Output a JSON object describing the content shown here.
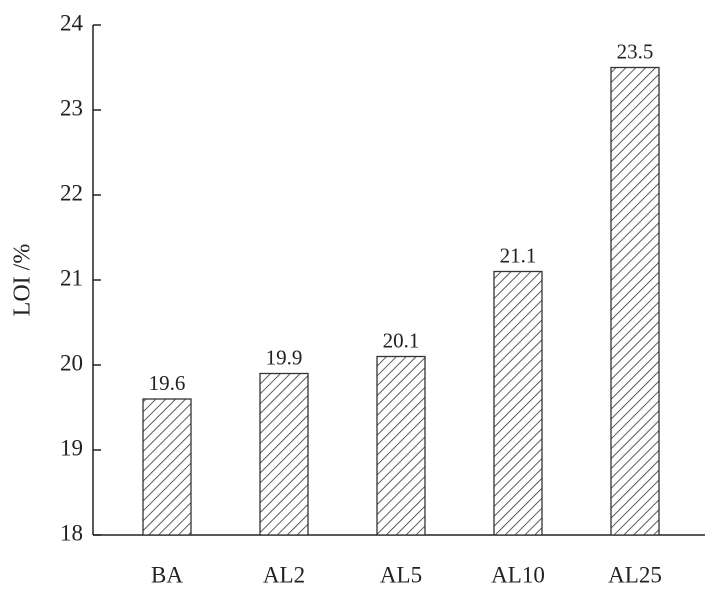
{
  "chart_data": {
    "type": "bar",
    "y_label": "LOI /%",
    "categories": [
      "BA",
      "AL2",
      "AL5",
      "AL10",
      "AL25"
    ],
    "values": [
      19.6,
      19.9,
      20.1,
      21.1,
      23.5
    ],
    "value_labels": [
      "19.6",
      "19.9",
      "20.1",
      "21.1",
      "23.5"
    ],
    "color": "#333333",
    "ylim": [
      18,
      24
    ],
    "yticks": [
      18,
      19,
      20,
      21,
      22,
      23,
      24
    ],
    "grid": false
  }
}
